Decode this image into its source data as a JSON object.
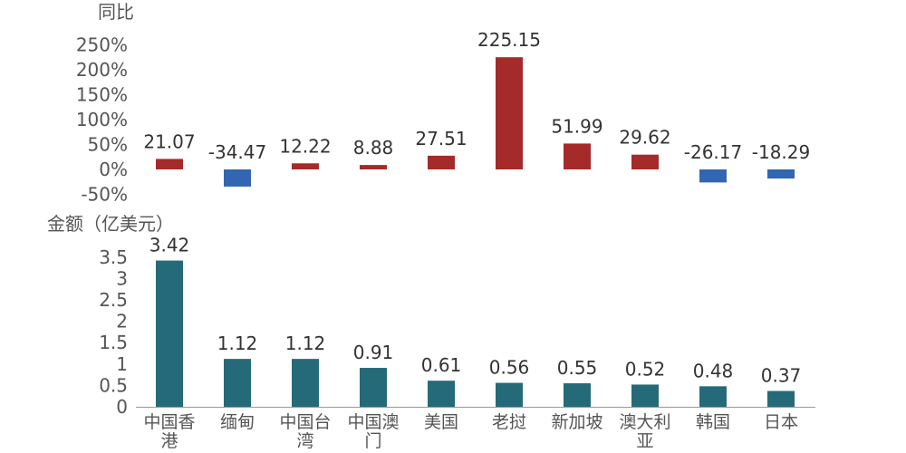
{
  "chart_data": [
    {
      "type": "bar",
      "ylabel": "同比",
      "categories": [
        "中国香港",
        "缅甸",
        "中国台湾",
        "中国澳门",
        "美国",
        "老挝",
        "新加坡",
        "澳大利亚",
        "韩国",
        "日本"
      ],
      "values": [
        21.07,
        -34.47,
        12.22,
        8.88,
        27.51,
        225.15,
        51.99,
        29.62,
        -26.17,
        -18.29
      ],
      "value_labels": [
        "21.07",
        "-34.47",
        "12.22",
        "8.88",
        "27.51",
        "225.15",
        "51.99",
        "29.62",
        "-26.17",
        "-18.29"
      ],
      "ylim": [
        -50,
        250
      ],
      "ticks": [
        -50,
        0,
        50,
        100,
        150,
        200,
        250
      ],
      "tick_labels": [
        "-50%",
        "0%",
        "50%",
        "100%",
        "150%",
        "200%",
        "250%"
      ],
      "positive_color": "#a52a2a",
      "negative_color": "#3366b2",
      "grid": false
    },
    {
      "type": "bar",
      "ylabel": "金额（亿美元）",
      "categories": [
        "中国香港",
        "缅甸",
        "中国台湾",
        "中国澳门",
        "美国",
        "老挝",
        "新加坡",
        "澳大利亚",
        "韩国",
        "日本"
      ],
      "category_lines": [
        [
          "中国香",
          "港"
        ],
        [
          "缅甸"
        ],
        [
          "中国台",
          "湾"
        ],
        [
          "中国澳",
          "门"
        ],
        [
          "美国"
        ],
        [
          "老挝"
        ],
        [
          "新加坡"
        ],
        [
          "澳大利",
          "亚"
        ],
        [
          "韩国"
        ],
        [
          "日本"
        ]
      ],
      "values": [
        3.42,
        1.12,
        1.12,
        0.91,
        0.61,
        0.56,
        0.55,
        0.52,
        0.48,
        0.37
      ],
      "value_labels": [
        "3.42",
        "1.12",
        "1.12",
        "0.91",
        "0.61",
        "0.56",
        "0.55",
        "0.52",
        "0.48",
        "0.37"
      ],
      "ylim": [
        0,
        3.5
      ],
      "ticks": [
        0,
        0.5,
        1,
        1.5,
        2,
        2.5,
        3,
        3.5
      ],
      "tick_labels": [
        "0",
        "0.5",
        "1",
        "1.5",
        "2",
        "2.5",
        "3",
        "3.5"
      ],
      "bar_color": "#256a78",
      "grid": false
    }
  ]
}
